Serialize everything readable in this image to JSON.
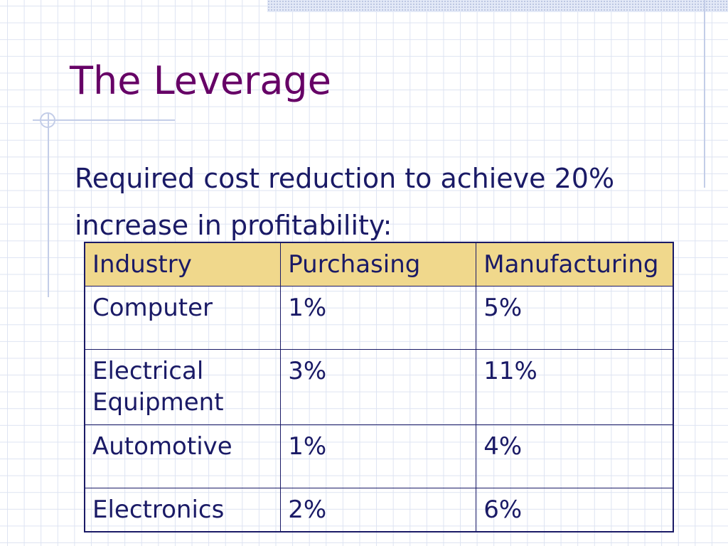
{
  "slide": {
    "title": "The Leverage",
    "subtitle": "Required cost reduction to achieve 20% increase in profitability:"
  },
  "table": {
    "headers": [
      "Industry",
      "Purchasing",
      "Manufacturing"
    ],
    "rows": [
      [
        "Computer",
        "1%",
        "5%"
      ],
      [
        "Electrical Equipment",
        "3%",
        "11%"
      ],
      [
        "Automotive",
        "1%",
        "4%"
      ],
      [
        "Electronics",
        "2%",
        "6%"
      ]
    ]
  },
  "colors": {
    "title": "#660066",
    "text": "#1a1a66",
    "header_fill": "#f0d88c",
    "grid": "#dde3f2"
  }
}
